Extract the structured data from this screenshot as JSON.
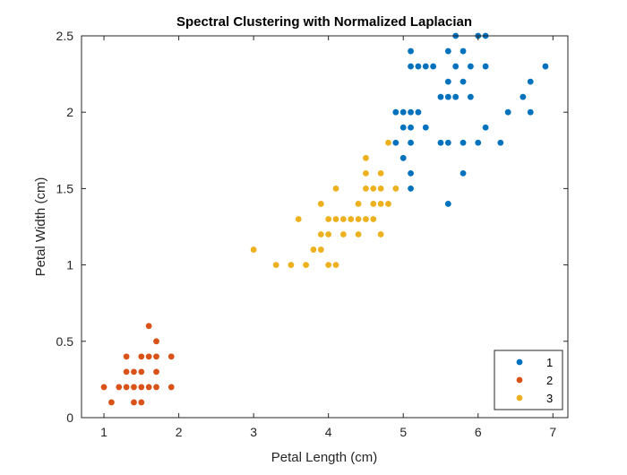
{
  "chart_data": {
    "type": "scatter",
    "title": "Spectral Clustering with Normalized Laplacian",
    "xlabel": "Petal Length (cm)",
    "ylabel": "Petal Width (cm)",
    "xlim": [
      0.7,
      7.2
    ],
    "ylim": [
      0,
      2.5
    ],
    "xticks": [
      1,
      2,
      3,
      4,
      5,
      6,
      7
    ],
    "yticks": [
      0,
      0.5,
      1,
      1.5,
      2,
      2.5
    ],
    "xtick_labels": [
      "1",
      "2",
      "3",
      "4",
      "5",
      "6",
      "7"
    ],
    "ytick_labels": [
      "0",
      "0.5",
      "1",
      "1.5",
      "2",
      "2.5"
    ],
    "grid": false,
    "legend_position": "bottom-right",
    "series": [
      {
        "name": "1",
        "color": "#0072BD",
        "points": [
          [
            5.1,
            2.4
          ],
          [
            5.1,
            2.3
          ],
          [
            5.2,
            2.3
          ],
          [
            5.3,
            2.3
          ],
          [
            5.4,
            2.3
          ],
          [
            5.6,
            2.4
          ],
          [
            5.7,
            2.5
          ],
          [
            5.7,
            2.3
          ],
          [
            5.8,
            2.4
          ],
          [
            5.9,
            2.3
          ],
          [
            6.0,
            2.5
          ],
          [
            6.1,
            2.5
          ],
          [
            6.1,
            2.3
          ],
          [
            6.9,
            2.3
          ],
          [
            6.7,
            2.2
          ],
          [
            5.6,
            2.2
          ],
          [
            5.8,
            2.2
          ],
          [
            5.5,
            2.1
          ],
          [
            5.6,
            2.1
          ],
          [
            5.7,
            2.1
          ],
          [
            5.9,
            2.1
          ],
          [
            6.6,
            2.1
          ],
          [
            4.9,
            2.0
          ],
          [
            5.0,
            2.0
          ],
          [
            5.1,
            2.0
          ],
          [
            5.2,
            2.0
          ],
          [
            6.4,
            2.0
          ],
          [
            6.7,
            2.0
          ],
          [
            5.0,
            1.9
          ],
          [
            5.1,
            1.9
          ],
          [
            5.3,
            1.9
          ],
          [
            6.1,
            1.9
          ],
          [
            4.9,
            1.8
          ],
          [
            5.1,
            1.8
          ],
          [
            5.5,
            1.8
          ],
          [
            5.6,
            1.8
          ],
          [
            5.8,
            1.8
          ],
          [
            6.0,
            1.8
          ],
          [
            6.3,
            1.8
          ],
          [
            5.0,
            1.7
          ],
          [
            5.1,
            1.6
          ],
          [
            5.8,
            1.6
          ],
          [
            5.1,
            1.5
          ],
          [
            5.6,
            1.4
          ]
        ]
      },
      {
        "name": "2",
        "color": "#D95319",
        "points": [
          [
            1.0,
            0.2
          ],
          [
            1.1,
            0.1
          ],
          [
            1.2,
            0.2
          ],
          [
            1.3,
            0.2
          ],
          [
            1.3,
            0.3
          ],
          [
            1.3,
            0.4
          ],
          [
            1.4,
            0.1
          ],
          [
            1.4,
            0.2
          ],
          [
            1.4,
            0.3
          ],
          [
            1.5,
            0.1
          ],
          [
            1.5,
            0.2
          ],
          [
            1.5,
            0.3
          ],
          [
            1.5,
            0.4
          ],
          [
            1.6,
            0.2
          ],
          [
            1.6,
            0.4
          ],
          [
            1.6,
            0.6
          ],
          [
            1.7,
            0.2
          ],
          [
            1.7,
            0.3
          ],
          [
            1.7,
            0.4
          ],
          [
            1.7,
            0.5
          ],
          [
            1.9,
            0.2
          ],
          [
            1.9,
            0.4
          ]
        ]
      },
      {
        "name": "3",
        "color": "#EDB120",
        "points": [
          [
            3.0,
            1.1
          ],
          [
            3.3,
            1.0
          ],
          [
            3.5,
            1.0
          ],
          [
            3.7,
            1.0
          ],
          [
            3.8,
            1.1
          ],
          [
            3.9,
            1.1
          ],
          [
            4.0,
            1.0
          ],
          [
            4.1,
            1.0
          ],
          [
            3.6,
            1.3
          ],
          [
            3.9,
            1.2
          ],
          [
            4.0,
            1.2
          ],
          [
            4.2,
            1.2
          ],
          [
            4.4,
            1.2
          ],
          [
            4.7,
            1.2
          ],
          [
            4.0,
            1.3
          ],
          [
            4.1,
            1.3
          ],
          [
            4.2,
            1.3
          ],
          [
            4.3,
            1.3
          ],
          [
            4.4,
            1.3
          ],
          [
            4.5,
            1.3
          ],
          [
            4.6,
            1.3
          ],
          [
            3.9,
            1.4
          ],
          [
            4.4,
            1.4
          ],
          [
            4.6,
            1.4
          ],
          [
            4.7,
            1.4
          ],
          [
            4.8,
            1.4
          ],
          [
            4.1,
            1.5
          ],
          [
            4.5,
            1.5
          ],
          [
            4.6,
            1.5
          ],
          [
            4.7,
            1.5
          ],
          [
            4.9,
            1.5
          ],
          [
            4.5,
            1.6
          ],
          [
            4.7,
            1.6
          ],
          [
            4.5,
            1.7
          ],
          [
            4.8,
            1.8
          ]
        ]
      }
    ]
  }
}
